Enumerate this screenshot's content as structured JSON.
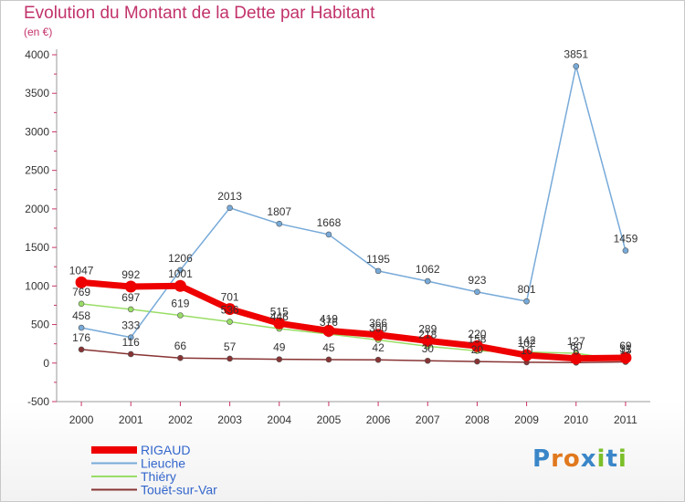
{
  "header": {
    "title": "Evolution du Montant de la Dette par Habitant",
    "subtitle": "(en €)"
  },
  "brand": {
    "letters": [
      "P",
      "r",
      "o",
      "x",
      "i",
      "t",
      "i"
    ],
    "colors": [
      "#3a86c8",
      "#e0781e",
      "#e0781e",
      "#3a86c8",
      "#7bbf2a",
      "#3a86c8",
      "#7bbf2a"
    ]
  },
  "chart_data": {
    "type": "line",
    "x": [
      "2000",
      "2001",
      "2002",
      "2003",
      "2004",
      "2005",
      "2006",
      "2007",
      "2008",
      "2009",
      "2010",
      "2011"
    ],
    "yticks": [
      "-500",
      "0",
      "500",
      "1000",
      "1500",
      "2000",
      "2500",
      "3000",
      "3500",
      "4000"
    ],
    "ylim": [
      -500,
      4000
    ],
    "grid": false,
    "legend_position": "bottom-left",
    "series": [
      {
        "name": "RIGAUD",
        "color": "#ee0000",
        "values": [
          1047,
          992,
          1001,
          701,
          515,
          419,
          366,
          289,
          220,
          102,
          60,
          69
        ],
        "labels": [
          "1047",
          "992",
          "1001",
          "701",
          "515",
          "419",
          "366",
          "289",
          "220",
          "102",
          "60",
          "69"
        ]
      },
      {
        "name": "Lieuche",
        "color": "#77aad9",
        "values": [
          458,
          333,
          1206,
          2013,
          1807,
          1668,
          1195,
          1062,
          923,
          801,
          3851,
          1459
        ],
        "labels": [
          "458",
          "333",
          "1206",
          "2013",
          "1807",
          "1668",
          "1195",
          "1062",
          "923",
          "801",
          "3851",
          "1459"
        ]
      },
      {
        "name": "Thiéry",
        "color": "#99dd66",
        "values": [
          769,
          697,
          619,
          536,
          446,
          376,
          300,
          218,
          158,
          142,
          127,
          31
        ],
        "labels": [
          "769",
          "697",
          "619",
          "536",
          "446",
          "376",
          "300",
          "218",
          "158",
          "142",
          "127",
          "31"
        ]
      },
      {
        "name": "Touët-sur-Var",
        "color": "#883333",
        "values": [
          176,
          116,
          66,
          57,
          49,
          45,
          42,
          30,
          20,
          10,
          6,
          15
        ],
        "labels": [
          "176",
          "116",
          "66",
          "57",
          "49",
          "45",
          "42",
          "30",
          "20",
          "10",
          "6",
          "15"
        ]
      }
    ]
  }
}
